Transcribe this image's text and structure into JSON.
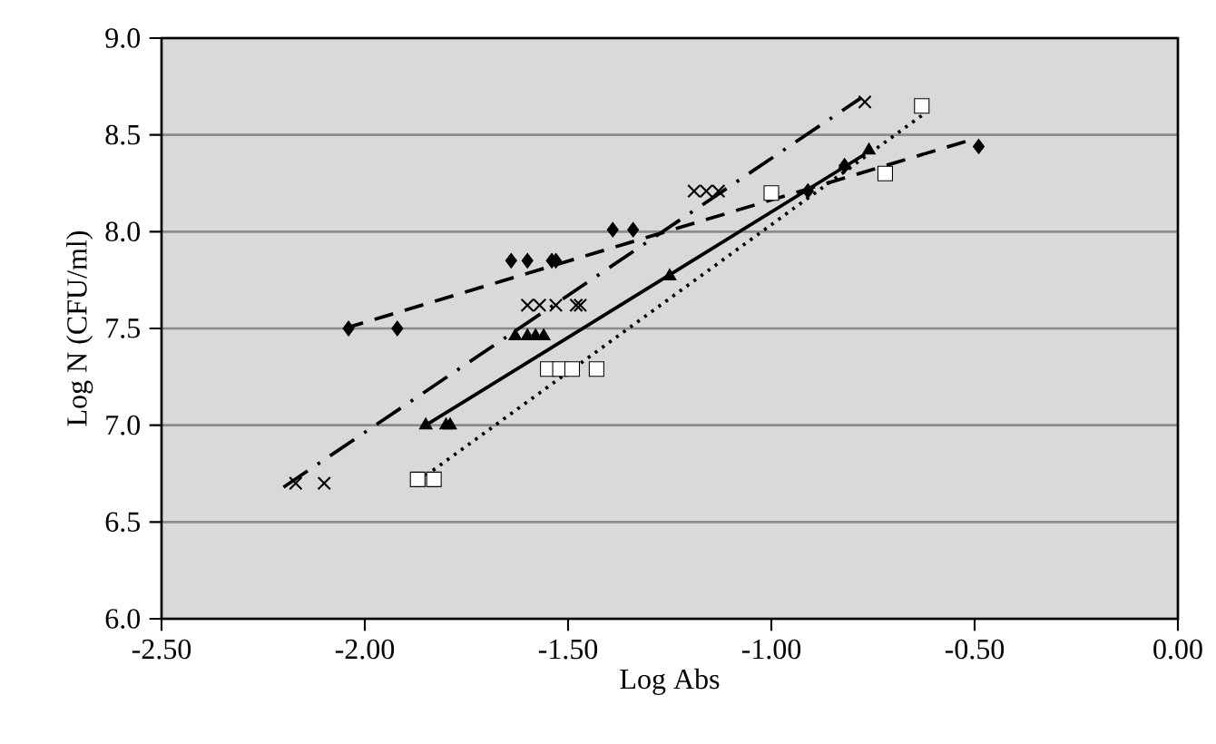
{
  "chart_data": {
    "type": "scatter",
    "xlabel": "Log Abs",
    "ylabel": "Log N (CFU/ml)",
    "xlim": [
      -2.5,
      0
    ],
    "ylim": [
      6.0,
      9.0
    ],
    "xticks": [
      {
        "value": -2.5,
        "label": "-2.50"
      },
      {
        "value": -2.0,
        "label": "-2.00"
      },
      {
        "value": -1.5,
        "label": "-1.50"
      },
      {
        "value": -1.0,
        "label": "-1.00"
      },
      {
        "value": -0.5,
        "label": "-0.50"
      },
      {
        "value": 0,
        "label": "0.00"
      }
    ],
    "yticks": [
      {
        "value": 6.0,
        "label": "6.0"
      },
      {
        "value": 6.5,
        "label": "6.5"
      },
      {
        "value": 7.0,
        "label": "7.0"
      },
      {
        "value": 7.5,
        "label": "7.5"
      },
      {
        "value": 8.0,
        "label": "8.0"
      },
      {
        "value": 8.5,
        "label": "8.5"
      },
      {
        "value": 9.0,
        "label": "9.0"
      }
    ],
    "grid": "y",
    "series": [
      {
        "marker": "diamond",
        "color": "#000000",
        "x": [
          -2.04,
          -1.92,
          -1.64,
          -1.6,
          -1.54,
          -1.53,
          -1.39,
          -1.34,
          -0.91,
          -0.82,
          -0.49
        ],
        "values": [
          7.5,
          7.5,
          7.85,
          7.85,
          7.85,
          7.85,
          8.01,
          8.01,
          8.21,
          8.34,
          8.44
        ]
      },
      {
        "marker": "cross",
        "color": "#000000",
        "x": [
          -2.17,
          -2.1,
          -1.6,
          -1.57,
          -1.53,
          -1.48,
          -1.47,
          -1.19,
          -1.16,
          -1.13,
          -0.77
        ],
        "values": [
          6.7,
          6.7,
          7.62,
          7.62,
          7.62,
          7.62,
          7.62,
          8.21,
          8.21,
          8.21,
          8.67
        ]
      },
      {
        "marker": "triangle",
        "color": "#000000",
        "x": [
          -1.85,
          -1.8,
          -1.79,
          -1.63,
          -1.6,
          -1.58,
          -1.56,
          -1.25,
          -0.82,
          -0.76
        ],
        "values": [
          7.0,
          7.0,
          7.0,
          7.46,
          7.46,
          7.46,
          7.46,
          7.77,
          8.34,
          8.42
        ]
      },
      {
        "marker": "square",
        "color": "#000000",
        "x": [
          -1.87,
          -1.83,
          -1.55,
          -1.52,
          -1.49,
          -1.43,
          -1.0,
          -0.72,
          -0.63
        ],
        "values": [
          6.72,
          6.72,
          7.29,
          7.29,
          7.29,
          7.29,
          8.2,
          8.3,
          8.65
        ]
      },
      {
        "type": "line",
        "marker": "none",
        "line_style": "dashed",
        "color": "#000000",
        "x": [
          -2.05,
          -0.5
        ],
        "values": [
          7.5,
          8.48
        ]
      },
      {
        "type": "line",
        "marker": "none",
        "line_style": "dashdot",
        "color": "#000000",
        "x": [
          -2.2,
          -0.78
        ],
        "values": [
          6.68,
          8.69
        ]
      },
      {
        "type": "line",
        "marker": "none",
        "line_style": "solid",
        "color": "#000000",
        "x": [
          -1.85,
          -0.77
        ],
        "values": [
          7.0,
          8.4
        ]
      },
      {
        "type": "line",
        "marker": "none",
        "line_style": "dotted",
        "color": "#000000",
        "x": [
          -1.85,
          -0.63
        ],
        "values": [
          6.74,
          8.6
        ]
      }
    ]
  }
}
